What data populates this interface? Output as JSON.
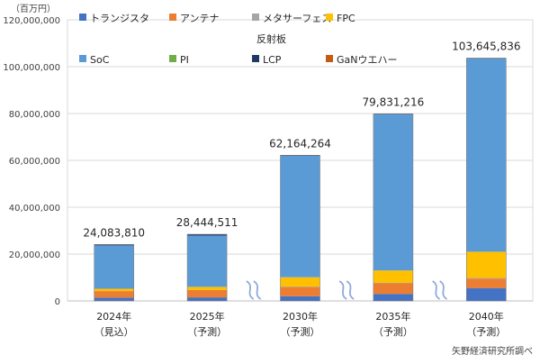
{
  "chart_data": {
    "type": "bar",
    "stacked": true,
    "unit_label": "（百万円）",
    "categories": [
      {
        "year": "2024年",
        "note": "（見込）"
      },
      {
        "year": "2025年",
        "note": "（予測）"
      },
      {
        "year": "2030年",
        "note": "（予測）"
      },
      {
        "year": "2035年",
        "note": "（予測）"
      },
      {
        "year": "2040年",
        "note": "（予測）"
      }
    ],
    "totals": [
      24083810,
      28444511,
      62164264,
      79831216,
      103645836
    ],
    "total_labels": [
      "24,083,810",
      "28,444,511",
      "62,164,264",
      "79,831,216",
      "103,645,836"
    ],
    "ylim": [
      0,
      120000000
    ],
    "yticks": [
      {
        "value": 0,
        "label": "0"
      },
      {
        "value": 20000000,
        "label": "20,000,000"
      },
      {
        "value": 40000000,
        "label": "40,000,000"
      },
      {
        "value": 60000000,
        "label": "60,000,000"
      },
      {
        "value": 80000000,
        "label": "80,000,000"
      },
      {
        "value": 100000000,
        "label": "100,000,000"
      },
      {
        "value": 120000000,
        "label": "120,000,000"
      }
    ],
    "series": [
      {
        "name": "トランジスタ",
        "color": "#4472c4",
        "values": [
          1400000,
          1500000,
          2000000,
          3000000,
          5500000
        ]
      },
      {
        "name": "アンテナ",
        "color": "#ed7d31",
        "values": [
          2800000,
          3200000,
          4000000,
          4500000,
          4000000
        ]
      },
      {
        "name": "メタサーフェス",
        "color": "#a5a5a5",
        "values": [
          0,
          0,
          100000,
          200000,
          300000
        ]
      },
      {
        "name": "FPC",
        "color": "#ffc000",
        "values": [
          1000000,
          1300000,
          4000000,
          5300000,
          11200000
        ]
      },
      {
        "name": "反射板",
        "color": "#ffffff",
        "values": [
          0,
          0,
          0,
          0,
          0
        ]
      },
      {
        "name": "SoC",
        "color": "#5b9bd5",
        "values": [
          18500000,
          21900000,
          51900000,
          66600000,
          82400000
        ]
      },
      {
        "name": "PI",
        "color": "#70ad47",
        "values": [
          0,
          0,
          0,
          0,
          0
        ]
      },
      {
        "name": "LCP",
        "color": "#1f3864",
        "values": [
          383810,
          544511,
          164264,
          231216,
          245836
        ]
      },
      {
        "name": "GaNウエハー",
        "color": "#c55a11",
        "values": [
          0,
          0,
          0,
          0,
          0
        ]
      }
    ],
    "legend_position": "top",
    "axis_breaks_after": [
      1,
      2,
      3
    ],
    "source": "矢野経済研究所調べ"
  }
}
